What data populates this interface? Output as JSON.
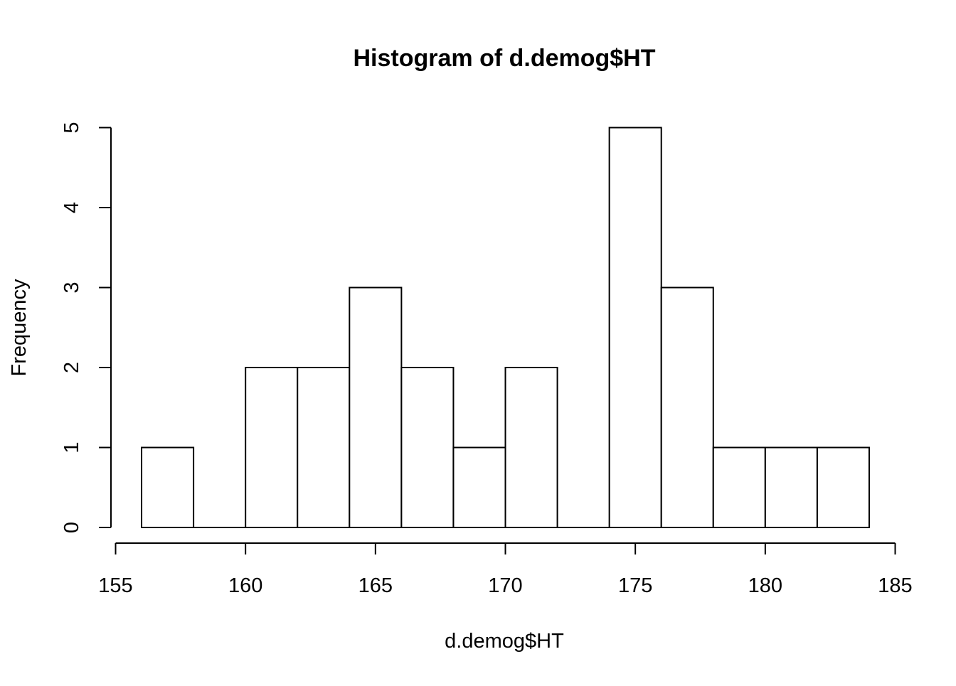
{
  "chart_data": {
    "type": "bar",
    "title": "Histogram of d.demog$HT",
    "xlabel": "d.demog$HT",
    "ylabel": "Frequency",
    "bins": [
      {
        "start": 156,
        "end": 158,
        "count": 1
      },
      {
        "start": 158,
        "end": 160,
        "count": 0
      },
      {
        "start": 160,
        "end": 162,
        "count": 2
      },
      {
        "start": 162,
        "end": 164,
        "count": 2
      },
      {
        "start": 164,
        "end": 166,
        "count": 3
      },
      {
        "start": 166,
        "end": 168,
        "count": 2
      },
      {
        "start": 168,
        "end": 170,
        "count": 1
      },
      {
        "start": 170,
        "end": 172,
        "count": 2
      },
      {
        "start": 172,
        "end": 174,
        "count": 0
      },
      {
        "start": 174,
        "end": 176,
        "count": 5
      },
      {
        "start": 176,
        "end": 178,
        "count": 3
      },
      {
        "start": 178,
        "end": 180,
        "count": 1
      },
      {
        "start": 180,
        "end": 182,
        "count": 1
      },
      {
        "start": 182,
        "end": 184,
        "count": 1
      }
    ],
    "xlim": [
      155,
      185
    ],
    "ylim": [
      0,
      5
    ],
    "x_ticks": [
      "155",
      "160",
      "165",
      "170",
      "175",
      "180",
      "185"
    ],
    "y_ticks": [
      "0",
      "1",
      "2",
      "3",
      "4",
      "5"
    ],
    "grid": false,
    "legend": "none",
    "colors": {
      "bar_fill": "#ffffff",
      "bar_stroke": "#000000"
    }
  }
}
